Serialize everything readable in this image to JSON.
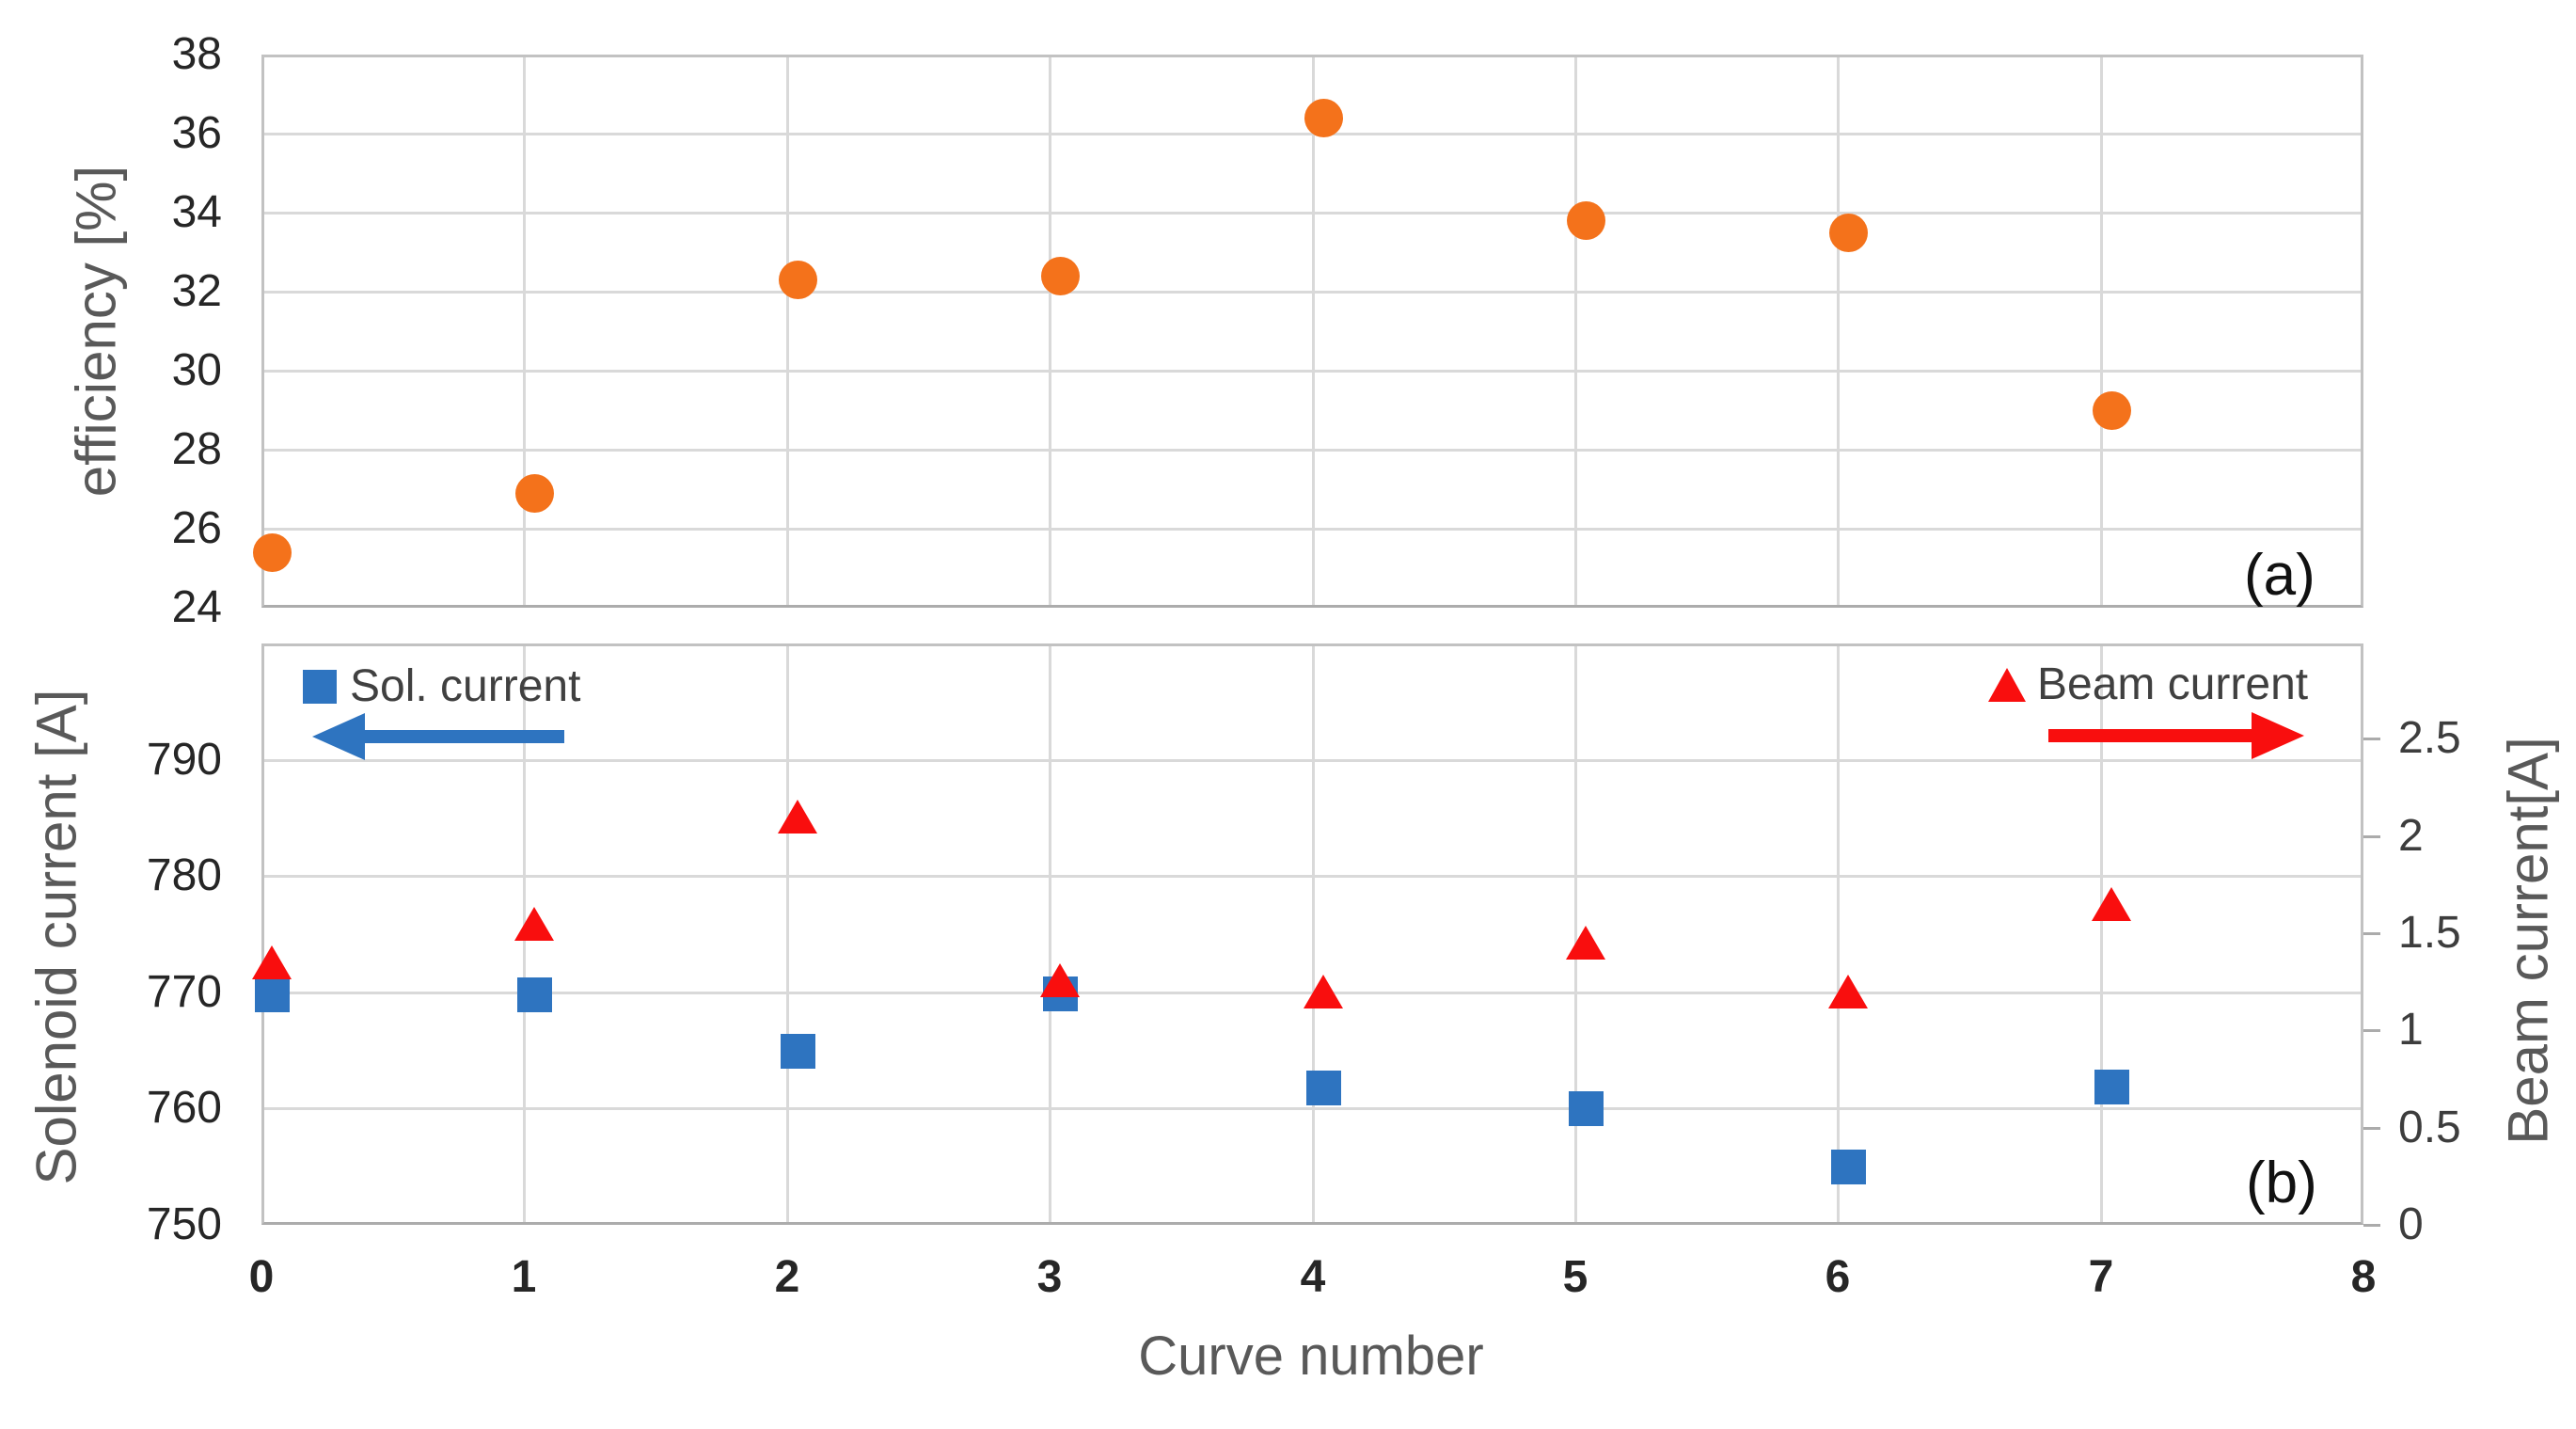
{
  "figure": {
    "xlabel": "Curve number",
    "x_ticks": [
      0,
      1,
      2,
      3,
      4,
      5,
      6,
      7,
      8
    ],
    "xlim": [
      0,
      8
    ],
    "background": "#FFFFFF"
  },
  "colors": {
    "efficiency_marker": "#F4721B",
    "solenoid_marker": "#2E74C0",
    "beam_marker": "#F90E0E",
    "gridline": "#D9D9D9",
    "panel_border": "#C2C2C2",
    "axis_title": "#595959",
    "tick_label": "#262626",
    "legend_text": "#404040"
  },
  "chart_data": [
    {
      "panel": "(a)",
      "type": "scatter",
      "ylabel": "efficiency [%]",
      "ylim": [
        24,
        38
      ],
      "y_ticks": [
        24,
        26,
        28,
        30,
        32,
        34,
        36,
        38
      ],
      "grid": true,
      "legend_position": "none",
      "x": [
        0,
        1,
        2,
        3,
        4,
        5,
        6,
        7
      ],
      "series": [
        {
          "name": "efficiency",
          "marker": "circle",
          "color_key": "efficiency_marker",
          "values": [
            25.4,
            26.9,
            32.3,
            32.4,
            36.4,
            33.8,
            33.5,
            29.0
          ]
        }
      ]
    },
    {
      "panel": "(b)",
      "type": "scatter",
      "ylabel_left": "Solenoid current [A]",
      "ylabel_right": "Beam current[A]",
      "ylim_left": [
        750,
        800
      ],
      "y_ticks_left": [
        750,
        760,
        770,
        780,
        790
      ],
      "ylim_right": [
        0,
        2.99
      ],
      "y_ticks_right": [
        0,
        0.5,
        1,
        1.5,
        2,
        2.5
      ],
      "grid": true,
      "x": [
        0,
        1,
        2,
        3,
        4,
        5,
        6,
        7
      ],
      "series": [
        {
          "name": "Sol. current",
          "axis": "left",
          "marker": "square",
          "color_key": "solenoid_marker",
          "values": [
            769.8,
            769.8,
            765.0,
            769.9,
            761.8,
            760.0,
            755.0,
            761.9
          ]
        },
        {
          "name": "Beam current",
          "axis": "right",
          "marker": "triangle",
          "color_key": "beam_marker",
          "values": [
            1.35,
            1.55,
            2.1,
            1.26,
            1.2,
            1.45,
            1.2,
            1.65
          ]
        }
      ],
      "legend": [
        {
          "label": "Sol. current",
          "marker": "square",
          "arrow": "left"
        },
        {
          "label": "Beam current",
          "marker": "triangle",
          "arrow": "right"
        }
      ]
    }
  ]
}
